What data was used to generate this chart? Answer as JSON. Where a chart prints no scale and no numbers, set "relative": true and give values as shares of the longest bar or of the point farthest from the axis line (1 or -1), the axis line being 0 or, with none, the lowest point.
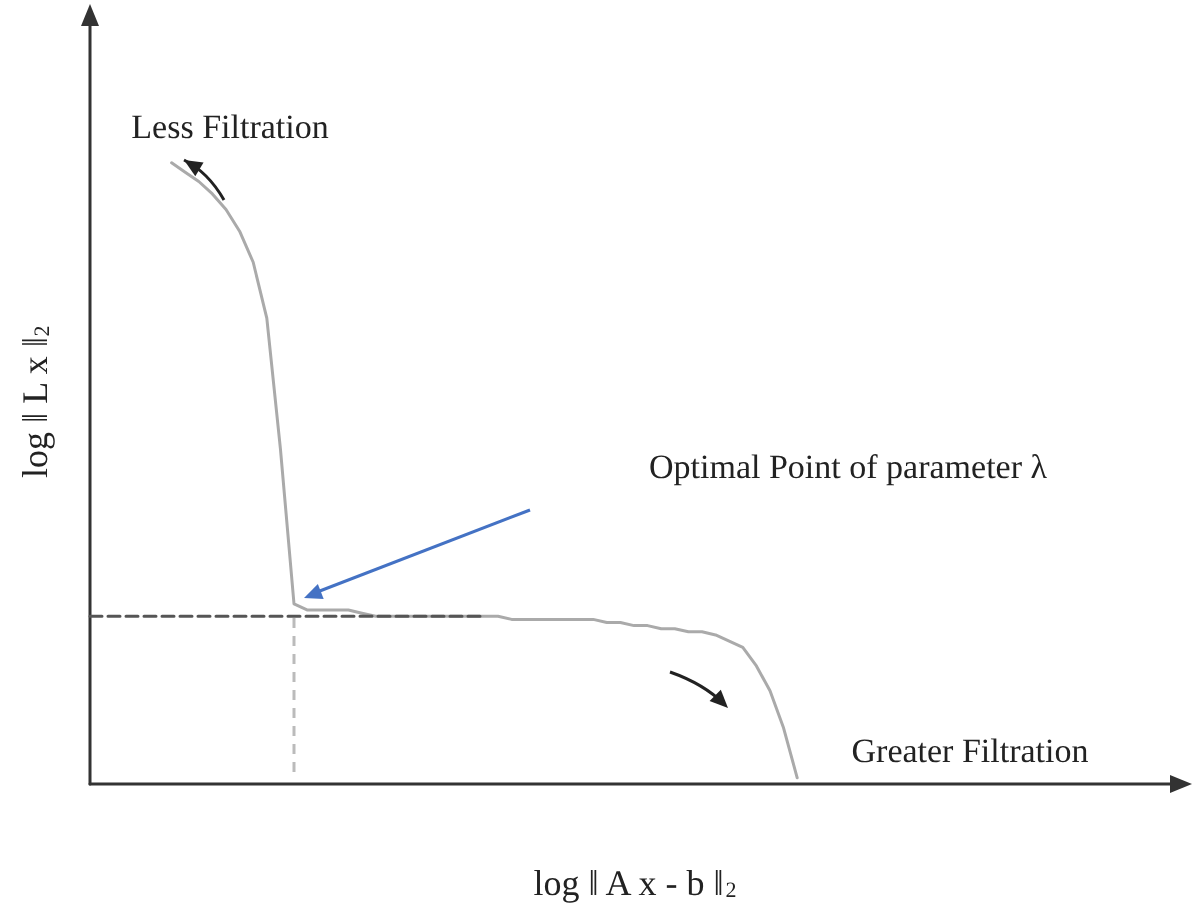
{
  "chart_data": {
    "type": "line",
    "relative": true,
    "grid": false,
    "marker": "none",
    "xlabel": "log ‖ A x - b ‖$_{2}$",
    "ylabel": "log ‖ L x ‖$_{2}$",
    "categories": [
      null,
      null,
      null,
      null,
      null,
      null,
      null,
      null,
      null,
      null,
      null,
      null,
      null,
      null,
      null,
      null,
      null,
      null,
      null,
      null,
      null,
      null,
      null,
      null,
      null,
      null,
      null,
      null,
      null,
      null,
      null,
      null,
      null,
      null,
      null,
      null,
      null,
      null,
      null,
      null,
      null,
      null,
      null,
      null,
      null,
      null,
      null,
      null,
      null,
      null,
      null,
      null,
      null,
      null,
      null,
      null,
      null,
      null,
      null,
      null,
      null,
      null,
      null,
      null,
      null,
      null,
      null,
      null,
      null,
      null,
      null,
      null,
      null,
      null,
      null,
      null,
      null,
      null,
      null,
      null,
      null
    ],
    "series": [
      {
        "color": "#aaaaaa",
        "line_style": "solid",
        "values": [
          null,
          null,
          null,
          null,
          null,
          null,
          1.0,
          0.985,
          0.97,
          0.95,
          0.925,
          0.89,
          0.84,
          0.75,
          0.54,
          0.29,
          0.28,
          0.28,
          0.28,
          0.28,
          0.275,
          0.27,
          0.27,
          0.27,
          0.27,
          0.27,
          0.27,
          0.27,
          0.27,
          0.27,
          0.27,
          0.265,
          0.265,
          0.265,
          0.265,
          0.265,
          0.265,
          0.265,
          0.26,
          0.26,
          0.255,
          0.255,
          0.25,
          0.25,
          0.245,
          0.245,
          0.24,
          0.23,
          0.22,
          0.19,
          0.15,
          0.09,
          0.01,
          null,
          null,
          null,
          null,
          null,
          null,
          null,
          null,
          null,
          null,
          null,
          null,
          null,
          null,
          null,
          null,
          null,
          null,
          null,
          null,
          null,
          null,
          null,
          null,
          null,
          null,
          null,
          null
        ]
      },
      {
        "color": "#555555",
        "line_style": "dashed",
        "values": [
          0.27,
          0.27,
          0.27,
          0.27,
          0.27,
          0.27,
          0.27,
          0.27,
          0.27,
          0.27,
          0.27,
          0.27,
          0.27,
          0.27,
          0.27,
          0.27,
          0.27,
          0.27,
          0.27,
          0.27,
          0.27,
          0.27,
          0.27,
          0.27,
          0.27,
          0.27,
          0.27,
          0.27,
          0.27,
          0.27,
          null,
          null,
          null,
          null,
          null,
          null,
          null,
          null,
          null,
          null,
          null,
          null,
          null,
          null,
          null,
          null,
          null,
          null,
          null,
          null,
          null,
          null,
          null,
          null,
          null,
          null,
          null,
          null,
          null,
          null,
          null,
          null,
          null,
          null,
          null,
          null,
          null,
          null,
          null,
          null,
          null,
          null,
          null,
          null,
          null,
          null,
          null,
          null,
          null,
          null,
          null
        ]
      }
    ],
    "annotations": [
      "Less Filtration",
      "Optimal Point of parameter λ",
      "Greater Filtration"
    ]
  }
}
